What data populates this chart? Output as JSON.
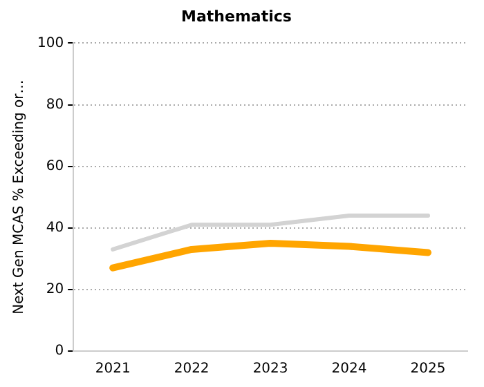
{
  "chart_data": {
    "type": "line",
    "title": "Mathematics",
    "ylabel": "Next Gen MCAS % Exceeding or…",
    "categories": [
      "2021",
      "2022",
      "2023",
      "2024",
      "2025"
    ],
    "series": [
      {
        "color": "#d3d3d3",
        "values": [
          33,
          41,
          41,
          44,
          44
        ]
      },
      {
        "color": "#ffa500",
        "values": [
          27,
          33,
          35,
          34,
          32
        ]
      }
    ],
    "ylim": [
      0,
      100
    ],
    "yticks": [
      0,
      20,
      40,
      60,
      80,
      100
    ],
    "grid": "y",
    "legend": false,
    "marker": "none",
    "line_style": "solid"
  }
}
